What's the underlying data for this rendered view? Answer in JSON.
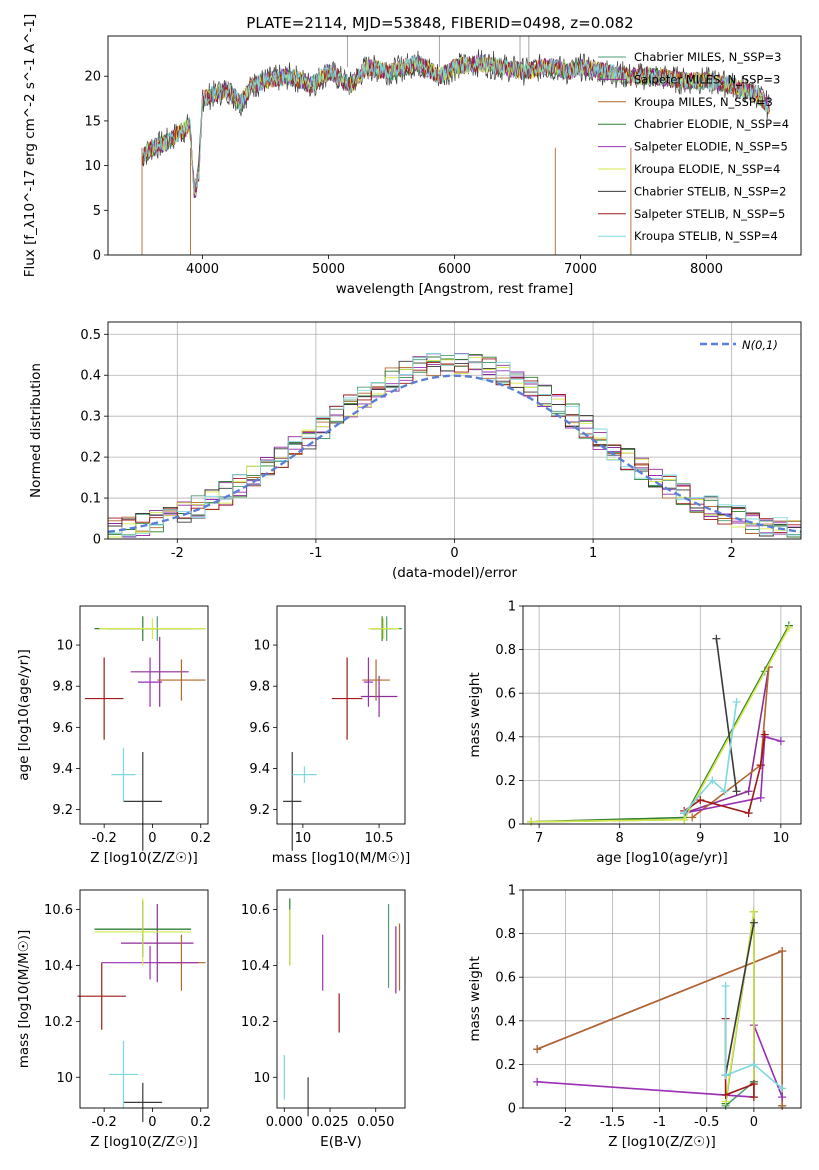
{
  "title": "PLATE=2114, MJD=53848, FIBERID=0498, z=0.082",
  "series_colors": [
    "#4c9b73",
    "#8d2d99",
    "#b1672a",
    "#2f7d2f",
    "#9a2fb5",
    "#d6e84a",
    "#3a3a3a",
    "#a01818",
    "#7ed8dd"
  ],
  "chart_data": [
    {
      "id": "spectrum",
      "type": "line",
      "xlabel": "wavelength [Angstrom, rest frame]",
      "ylabel": "Flux [f_λ10^-17 erg cm^-2 s^-1 A^-1]",
      "xlim": [
        3250,
        8750
      ],
      "ylim": [
        0,
        24.5
      ],
      "xticks": [
        4000,
        5000,
        6000,
        7000,
        8000
      ],
      "yticks": [
        0,
        5,
        10,
        15,
        20
      ],
      "grid": false,
      "legend_position": "top-right",
      "legend": [
        "Chabrier MILES, N_SSP=3",
        "Salpeter MILES, N_SSP=3",
        "Kroupa MILES, N_SSP=3",
        "Chabrier ELODIE, N_SSP=4",
        "Salpeter ELODIE, N_SSP=5",
        "Kroupa ELODIE, N_SSP=4",
        "Chabrier STELIB, N_SSP=2",
        "Salpeter STELIB, N_SSP=5",
        "Kroupa STELIB, N_SSP=4"
      ],
      "x": [
        3520,
        3600,
        3700,
        3800,
        3900,
        3935,
        3970,
        4000,
        4100,
        4200,
        4300,
        4400,
        4500,
        4700,
        4861,
        5000,
        5175,
        5300,
        5500,
        5700,
        5890,
        6000,
        6200,
        6400,
        6563,
        6700,
        6800,
        6900,
        7000,
        7200,
        7400,
        7600,
        7800,
        8000,
        8200,
        8400,
        8500
      ],
      "y": [
        11,
        12,
        12.5,
        13.5,
        14.5,
        7,
        9,
        17.5,
        18,
        18.5,
        17,
        19,
        19.5,
        20,
        19,
        20.5,
        19,
        21,
        20.5,
        21.5,
        20,
        21,
        21.5,
        21,
        20.5,
        21,
        21,
        20.5,
        21,
        20.5,
        20,
        20,
        19.5,
        19.5,
        19,
        18,
        16.5
      ]
    },
    {
      "id": "residuals",
      "type": "histogram",
      "xlabel": "(data-model)/error",
      "ylabel": "Normed distribution",
      "xlim": [
        -2.5,
        2.5
      ],
      "ylim": [
        0,
        0.53
      ],
      "xticks": [
        -2,
        -1,
        0,
        1,
        2
      ],
      "yticks": [
        0.0,
        0.1,
        0.2,
        0.3,
        0.4,
        0.5
      ],
      "grid": true,
      "legend_position": "top-right",
      "legend": [
        "N(0,1)"
      ]
    },
    {
      "id": "age-vs-Z",
      "type": "scatter",
      "xlabel": "Z [log10(Z/Z☉)]",
      "ylabel": "age  [log10(age/yr)]",
      "xlim": [
        -0.3,
        0.23
      ],
      "ylim": [
        9.13,
        10.19
      ],
      "xticks": [
        -0.2,
        0.0,
        0.2
      ],
      "yticks": [
        9.2,
        9.4,
        9.6,
        9.8,
        10.0
      ],
      "points": [
        {
          "x": 0.02,
          "y": 10.08,
          "xerr": 0.2,
          "yerr": 0.06
        },
        {
          "x": 0.03,
          "y": 9.87,
          "xerr": 0.12,
          "yerr": 0.17
        },
        {
          "x": 0.12,
          "y": 9.83,
          "xerr": 0.1,
          "yerr": 0.1
        },
        {
          "x": -0.04,
          "y": 10.08,
          "xerr": 0.2,
          "yerr": 0.06
        },
        {
          "x": -0.01,
          "y": 9.82,
          "xerr": 0.05,
          "yerr": 0.12
        },
        {
          "x": 0.0,
          "y": 10.08,
          "xerr": 0.22,
          "yerr": 0.05
        },
        {
          "x": -0.04,
          "y": 9.24,
          "xerr": 0.08,
          "yerr": 0.24
        },
        {
          "x": -0.2,
          "y": 9.74,
          "xerr": 0.08,
          "yerr": 0.2
        },
        {
          "x": -0.12,
          "y": 9.37,
          "xerr": 0.05,
          "yerr": 0.13
        }
      ]
    },
    {
      "id": "age-vs-mass",
      "type": "scatter",
      "xlabel": "mass [log10(M/M☉)]",
      "ylabel": "",
      "xlim": [
        9.83,
        10.67
      ],
      "ylim": [
        9.13,
        10.19
      ],
      "xticks": [
        10.0,
        10.5
      ],
      "yticks": [
        9.2,
        9.4,
        9.6,
        9.8,
        10.0
      ],
      "points": [
        {
          "x": 10.55,
          "y": 10.08,
          "xerr": 0.1,
          "yerr": 0.06
        },
        {
          "x": 10.5,
          "y": 9.75,
          "xerr": 0.12,
          "yerr": 0.1
        },
        {
          "x": 10.48,
          "y": 9.83,
          "xerr": 0.09,
          "yerr": 0.1
        },
        {
          "x": 10.52,
          "y": 10.08,
          "xerr": 0.08,
          "yerr": 0.06
        },
        {
          "x": 10.43,
          "y": 9.82,
          "xerr": 0.03,
          "yerr": 0.12
        },
        {
          "x": 10.53,
          "y": 10.08,
          "xerr": 0.1,
          "yerr": 0.05
        },
        {
          "x": 9.93,
          "y": 9.24,
          "xerr": 0.06,
          "yerr": 0.24
        },
        {
          "x": 10.29,
          "y": 9.74,
          "xerr": 0.1,
          "yerr": 0.2
        },
        {
          "x": 10.01,
          "y": 9.37,
          "xerr": 0.08,
          "yerr": 0.04
        }
      ]
    },
    {
      "id": "weight-vs-age",
      "type": "line",
      "xlabel": "age  [log10(age/yr)]",
      "ylabel": "mass weight",
      "xlim": [
        6.8,
        10.25
      ],
      "ylim": [
        0,
        1
      ],
      "xticks": [
        7,
        8,
        9,
        10
      ],
      "yticks": [
        0.0,
        0.2,
        0.4,
        0.6,
        0.8,
        1.0
      ],
      "grid": true,
      "series": [
        {
          "x": [
            6.9,
            8.8,
            9.8,
            10.1
          ],
          "y": [
            0.01,
            0.02,
            0.7,
            0.91
          ]
        },
        {
          "x": [
            8.8,
            9.6,
            9.85
          ],
          "y": [
            0.05,
            0.15,
            0.72
          ]
        },
        {
          "x": [
            8.9,
            9.75,
            9.85
          ],
          "y": [
            0.03,
            0.27,
            0.72
          ]
        },
        {
          "x": [
            6.9,
            8.8,
            10.1
          ],
          "y": [
            0.01,
            0.03,
            0.91
          ]
        },
        {
          "x": [
            8.8,
            9.75,
            9.8,
            10.0
          ],
          "y": [
            0.05,
            0.12,
            0.4,
            0.38
          ]
        },
        {
          "x": [
            6.9,
            8.8,
            10.1
          ],
          "y": [
            0.01,
            0.02,
            0.9
          ]
        },
        {
          "x": [
            9.2,
            9.45
          ],
          "y": [
            0.85,
            0.15
          ]
        },
        {
          "x": [
            8.8,
            9.0,
            9.6,
            9.75,
            9.8
          ],
          "y": [
            0.06,
            0.11,
            0.05,
            0.27,
            0.41
          ]
        },
        {
          "x": [
            8.8,
            9.15,
            9.3,
            9.45
          ],
          "y": [
            0.05,
            0.2,
            0.15,
            0.56
          ]
        }
      ]
    },
    {
      "id": "mass-vs-Z",
      "type": "scatter",
      "xlabel": "Z [log10(Z/Z☉)]",
      "ylabel": "mass [log10(M/M☉)]",
      "xlim": [
        -0.3,
        0.23
      ],
      "ylim": [
        9.89,
        10.67
      ],
      "xticks": [
        -0.2,
        0.0,
        0.2
      ],
      "yticks": [
        10.0,
        10.2,
        10.4,
        10.6
      ],
      "points": [
        {
          "x": -0.04,
          "y": 10.53,
          "xerr": 0.2,
          "yerr": 0.1
        },
        {
          "x": 0.02,
          "y": 10.48,
          "xerr": 0.15,
          "yerr": 0.14
        },
        {
          "x": 0.12,
          "y": 10.41,
          "xerr": 0.1,
          "yerr": 0.1
        },
        {
          "x": -0.04,
          "y": 10.53,
          "xerr": 0.2,
          "yerr": 0.1
        },
        {
          "x": -0.01,
          "y": 10.41,
          "xerr": 0.2,
          "yerr": 0.06
        },
        {
          "x": -0.04,
          "y": 10.52,
          "xerr": 0.2,
          "yerr": 0.12
        },
        {
          "x": -0.04,
          "y": 9.91,
          "xerr": 0.08,
          "yerr": 0.07
        },
        {
          "x": -0.21,
          "y": 10.29,
          "xerr": 0.1,
          "yerr": 0.12
        },
        {
          "x": -0.12,
          "y": 10.01,
          "xerr": 0.06,
          "yerr": 0.12
        }
      ]
    },
    {
      "id": "mass-vs-ebv",
      "type": "scatter",
      "xlabel": "E(B-V)",
      "ylabel": "",
      "xlim": [
        -0.004,
        0.066
      ],
      "ylim": [
        9.89,
        10.67
      ],
      "xticks": [
        0.0,
        0.025,
        0.05
      ],
      "xticklabels": [
        "0.000",
        "0.025",
        "0.050"
      ],
      "yticks": [
        10.0,
        10.2,
        10.4,
        10.6
      ],
      "points": [
        {
          "x": 0.057,
          "y": 10.47,
          "yerr": 0.15
        },
        {
          "x": 0.061,
          "y": 10.42,
          "yerr": 0.12
        },
        {
          "x": 0.063,
          "y": 10.43,
          "yerr": 0.12
        },
        {
          "x": 0.003,
          "y": 10.52,
          "yerr": 0.12
        },
        {
          "x": 0.021,
          "y": 10.41,
          "yerr": 0.1
        },
        {
          "x": 0.003,
          "y": 10.5,
          "yerr": 0.1
        },
        {
          "x": 0.013,
          "y": 9.93,
          "yerr": 0.07
        },
        {
          "x": 0.03,
          "y": 10.23,
          "yerr": 0.07
        },
        {
          "x": 0.0,
          "y": 10.0,
          "yerr": 0.08
        }
      ]
    },
    {
      "id": "weight-vs-Z",
      "type": "line",
      "xlabel": "Z [log10(Z/Z☉)]",
      "ylabel": "mass weight",
      "xlim": [
        -2.45,
        0.5
      ],
      "ylim": [
        0,
        1
      ],
      "xticks": [
        -2.0,
        -1.5,
        -1.0,
        -0.5,
        0.0
      ],
      "yticks": [
        0.0,
        0.2,
        0.4,
        0.6,
        0.8,
        1.0
      ],
      "grid": true,
      "series": [
        {
          "x": [
            -0.3,
            0.0,
            0.0
          ],
          "y": [
            0.01,
            0.12,
            0.9
          ]
        },
        {
          "x": [
            -2.3,
            0.3,
            0.3
          ],
          "y": [
            0.27,
            0.72,
            0.01
          ]
        },
        {
          "x": [
            -2.3,
            0.3,
            0.3
          ],
          "y": [
            0.27,
            0.72,
            0.01
          ]
        },
        {
          "x": [
            -0.3,
            0.0,
            0.0
          ],
          "y": [
            0.02,
            0.9,
            0.12
          ]
        },
        {
          "x": [
            -2.3,
            0.0,
            0.0,
            0.3
          ],
          "y": [
            0.12,
            0.05,
            0.38,
            0.05
          ]
        },
        {
          "x": [
            -0.3,
            0.0,
            0.0
          ],
          "y": [
            0.03,
            0.9,
            0.05
          ]
        },
        {
          "x": [
            -0.3,
            0.0
          ],
          "y": [
            0.15,
            0.85
          ]
        },
        {
          "x": [
            -0.3,
            -0.3,
            0.0,
            0.0
          ],
          "y": [
            0.41,
            0.06,
            0.11,
            0.05
          ]
        },
        {
          "x": [
            -0.3,
            -0.3,
            0.0,
            0.3
          ],
          "y": [
            0.56,
            0.15,
            0.2,
            0.09
          ]
        }
      ]
    }
  ]
}
